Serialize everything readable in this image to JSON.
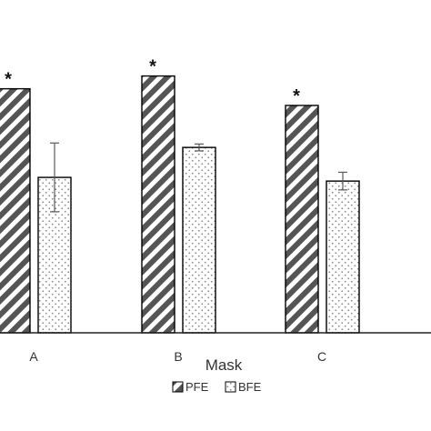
{
  "chart_data": {
    "type": "bar",
    "xlabel": "Mask",
    "ylabel": "",
    "categories": [
      "A",
      "B",
      "C"
    ],
    "series": [
      {
        "name": "PFE",
        "values": [
          99.4,
          104.6,
          92.6
        ],
        "pattern": "diagonal-hatch",
        "significance": [
          "*",
          "*",
          "*"
        ]
      },
      {
        "name": "BFE",
        "values": [
          63.3,
          75.5,
          61.8
        ],
        "pattern": "dots",
        "error": [
          14.0,
          1.4,
          3.6
        ]
      }
    ],
    "ylim": [
      0,
      120
    ],
    "grid": false,
    "legend_position": "bottom-center",
    "colors": {
      "bar_outline": "#000000",
      "hatch_dark": "#555555",
      "hatch_light": "#ffffff",
      "dots": "#8a8a8a",
      "error_bar": "#595959",
      "axis": "#222222"
    }
  }
}
